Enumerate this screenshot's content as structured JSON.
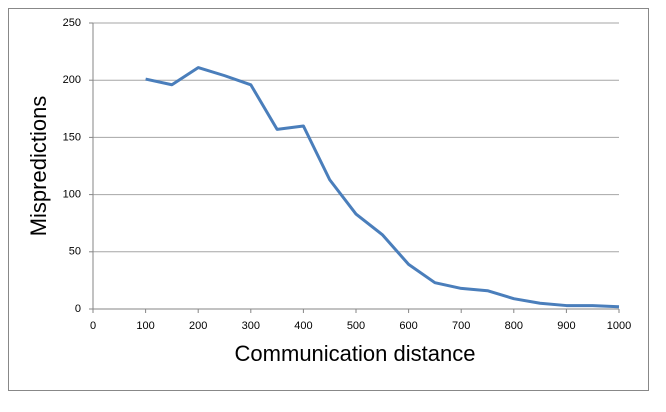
{
  "chart_data": {
    "type": "line",
    "x_label": "Communication distance",
    "y_label": "Mispredictions",
    "x": [
      100,
      150,
      200,
      250,
      300,
      350,
      400,
      450,
      500,
      550,
      600,
      650,
      700,
      750,
      800,
      850,
      900,
      950,
      1000
    ],
    "series": [
      {
        "color": "#4a7ebb",
        "values": [
          201,
          196,
          211,
          204,
          196,
          157,
          160,
          113,
          83,
          65,
          39,
          23,
          18,
          16,
          9,
          5,
          3,
          3,
          2
        ]
      }
    ],
    "xlim": [
      0,
      1000
    ],
    "xticks": [
      0,
      100,
      200,
      300,
      400,
      500,
      600,
      700,
      800,
      900,
      1000
    ],
    "ylim": [
      0,
      250
    ],
    "yticks": [
      0,
      50,
      100,
      150,
      200,
      250
    ],
    "grid": true
  }
}
